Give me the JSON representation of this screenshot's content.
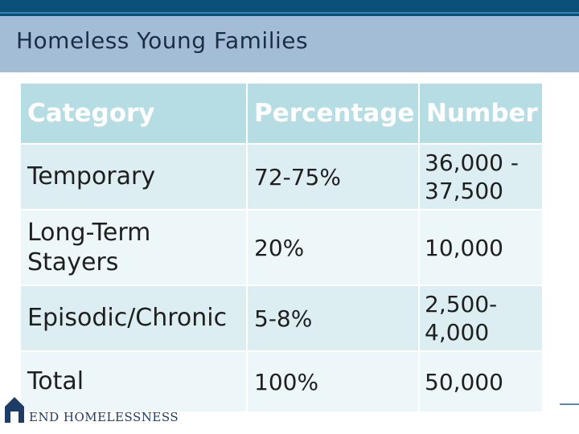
{
  "slide": {
    "title": "Homeless Young Families"
  },
  "table": {
    "headers": [
      "Category",
      "Percentage",
      "Number"
    ],
    "rows": [
      {
        "category": "Temporary",
        "percentage": "72-75%",
        "number": "36,000 -\n37,500"
      },
      {
        "category": "Long-Term\nStayers",
        "percentage": "20%",
        "number": "10,000"
      },
      {
        "category": "Episodic/Chronic",
        "percentage": "5-8%",
        "number": "2,500-\n4,000"
      },
      {
        "category": "Total",
        "percentage": "100%",
        "number": "50,000"
      }
    ]
  },
  "logo": {
    "text": "END HOMELESSNESS",
    "icon": "house-logo-icon"
  },
  "colors": {
    "top_bar": "#0b5077",
    "title_band": "#a4bdd6",
    "header_cell": "#b7dde4",
    "row_dark": "#dceef2",
    "row_light": "#edf6f8",
    "logo_navy": "#1d3c66"
  }
}
